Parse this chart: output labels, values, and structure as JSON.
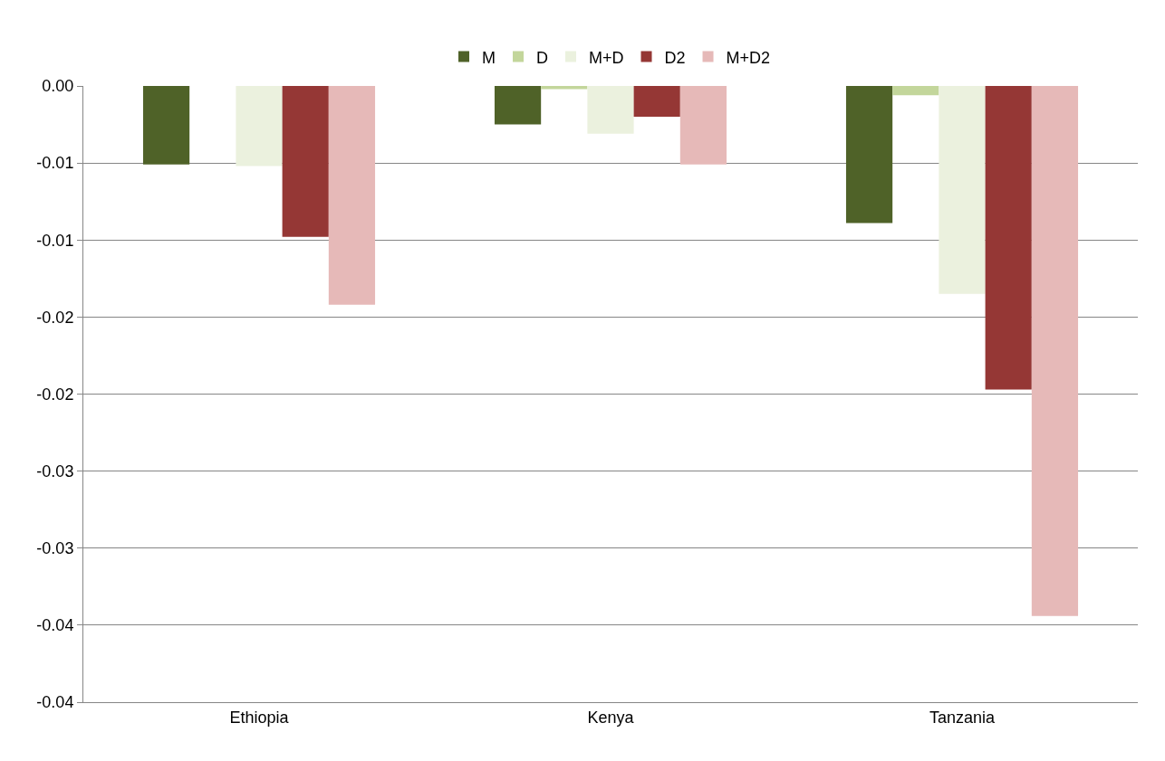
{
  "chart_data": {
    "type": "bar",
    "categories": [
      "Ethiopia",
      "Kenya",
      "Tanzania"
    ],
    "series": [
      {
        "name": "M",
        "color": "#4f6228",
        "values": [
          -0.0051,
          -0.0025,
          -0.0089
        ]
      },
      {
        "name": "D",
        "color": "#c3d69b",
        "values": [
          0,
          -0.0002,
          -0.0006
        ]
      },
      {
        "name": "M+D",
        "color": "#ebf1de",
        "values": [
          -0.0052,
          -0.0031,
          -0.0135
        ]
      },
      {
        "name": "D2",
        "color": "#953735",
        "values": [
          -0.0098,
          -0.002,
          -0.0197
        ]
      },
      {
        "name": "M+D2",
        "color": "#e6b9b8",
        "values": [
          -0.0142,
          -0.0051,
          -0.0344
        ]
      }
    ],
    "ylim": [
      -0.04,
      0
    ],
    "yticks": [
      {
        "value": 0,
        "label": "0.00"
      },
      {
        "value": -0.005,
        "label": "-0.01"
      },
      {
        "value": -0.01,
        "label": "-0.01"
      },
      {
        "value": -0.015,
        "label": "-0.02"
      },
      {
        "value": -0.02,
        "label": "-0.02"
      },
      {
        "value": -0.025,
        "label": "-0.03"
      },
      {
        "value": -0.03,
        "label": "-0.03"
      },
      {
        "value": -0.035,
        "label": "-0.04"
      },
      {
        "value": -0.04,
        "label": "-0.04"
      }
    ],
    "grid": "y",
    "legend": "top"
  }
}
